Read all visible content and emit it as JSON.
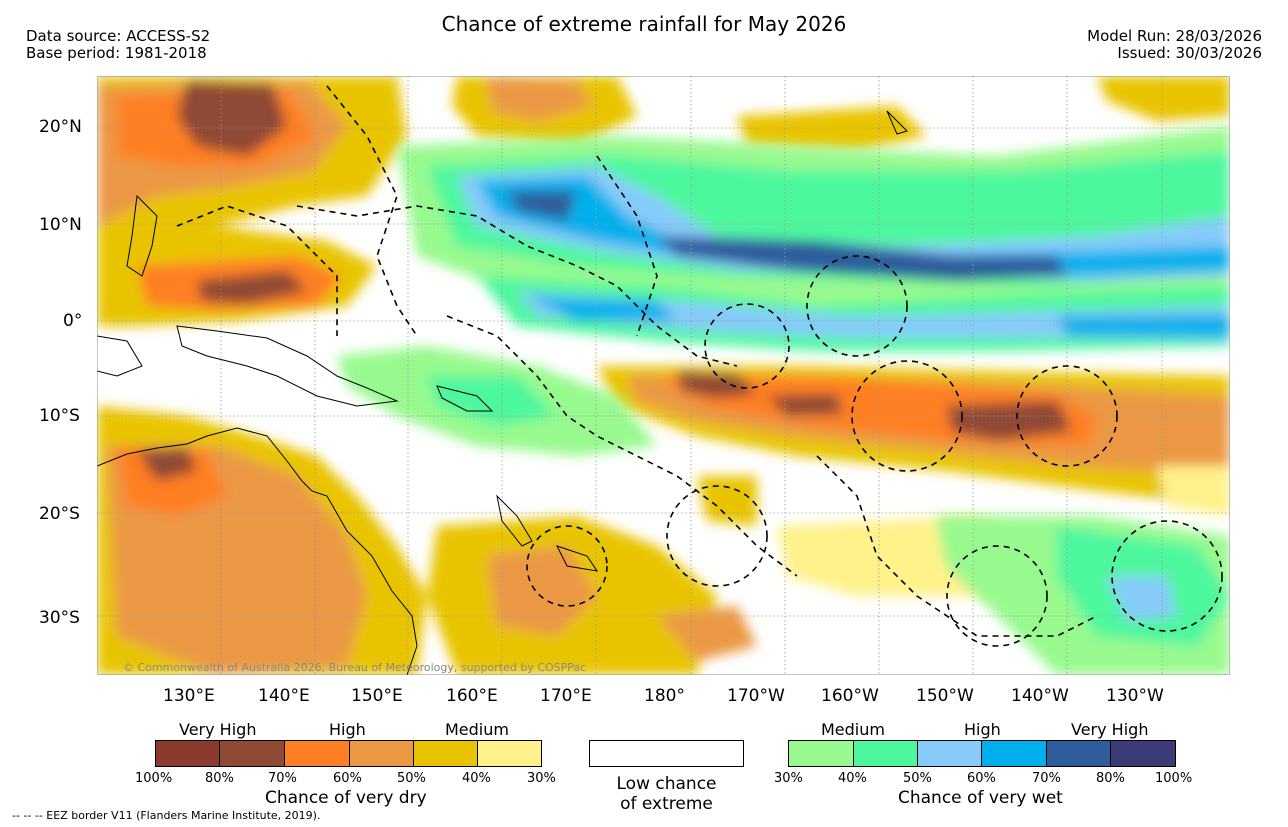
{
  "header": {
    "title": "Chance of extreme rainfall for May 2026",
    "data_source": "Data source: ACCESS-S2",
    "base_period": "Base period: 1981-2018",
    "model_run": "Model Run: 28/03/2026",
    "issued": "Issued: 30/03/2026"
  },
  "map": {
    "lat_labels": [
      "20°N",
      "10°N",
      "0°",
      "10°S",
      "20°S",
      "30°S"
    ],
    "lon_labels": [
      "130°E",
      "140°E",
      "150°E",
      "160°E",
      "170°E",
      "180°",
      "170°W",
      "160°W",
      "150°W",
      "140°W",
      "130°W"
    ],
    "copyright": "© Commonwealth of Australia 2026, Bureau of Meteorology, supported by COSPPac"
  },
  "legend": {
    "dry": {
      "category_labels": [
        "Very High",
        "High",
        "Medium"
      ],
      "percent_labels": [
        "100%",
        "80%",
        "70%",
        "60%",
        "50%",
        "40%",
        "30%"
      ],
      "colors": [
        "#8b3a2e",
        "#8f4a36",
        "#ff7f24",
        "#eb9845",
        "#e8c400",
        "#fff28a"
      ],
      "caption": "Chance of very dry"
    },
    "low": {
      "caption_line1": "Low chance",
      "caption_line2": "of extreme",
      "color": "#ffffff"
    },
    "wet": {
      "category_labels": [
        "Medium",
        "High",
        "Very High"
      ],
      "percent_labels": [
        "30%",
        "40%",
        "50%",
        "60%",
        "70%",
        "80%",
        "100%"
      ],
      "colors": [
        "#98f98e",
        "#4df79e",
        "#86cbfa",
        "#00b0ec",
        "#2f5d9c",
        "#3b3b78"
      ],
      "caption": "Chance of very wet"
    }
  },
  "footer": {
    "eez_note": "--  --  -- EEZ border V11 (Flanders Marine Institute, 2019)."
  }
}
